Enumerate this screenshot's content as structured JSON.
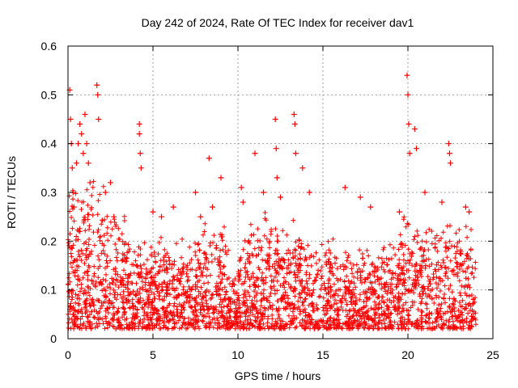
{
  "chart_data": {
    "type": "scatter",
    "title": "Day 242 of 2024, Rate Of TEC Index for receiver dav1",
    "xlabel": "GPS time / hours",
    "ylabel": "ROTI / TECUs",
    "xlim": [
      0,
      25
    ],
    "ylim": [
      0,
      0.6
    ],
    "xticks": [
      0,
      5,
      10,
      15,
      20,
      25
    ],
    "yticks": [
      0,
      0.1,
      0.2,
      0.3,
      0.4,
      0.5,
      0.6
    ],
    "grid": true,
    "legend": "none",
    "marker": "plus",
    "color": "#ff0000",
    "series": [
      {
        "x": [
          0.1,
          0.15,
          0.2,
          0.25,
          0.3,
          0.35,
          0.5,
          0.6,
          0.7,
          0.8,
          0.9,
          1.0,
          1.1,
          1.2,
          1.3,
          1.7,
          1.75,
          1.8,
          2.2,
          2.5,
          2.7,
          4.2,
          4.25,
          4.3,
          4.2,
          5.0,
          5.5,
          6.2,
          7.5,
          7.8,
          8.3,
          8.5,
          9.0,
          10.2,
          10.3,
          11.0,
          11.5,
          12.2,
          12.25,
          12.3,
          12.5,
          13.3,
          13.35,
          13.4,
          13.8,
          14.2,
          16.3,
          17.2,
          17.8,
          19.5,
          19.95,
          20.0,
          20.05,
          20.1,
          20.4,
          20.5,
          21.0,
          22.0,
          22.4,
          22.45,
          22.5,
          23.4,
          23.6
        ],
        "y": [
          0.51,
          0.45,
          0.4,
          0.35,
          0.3,
          0.27,
          0.36,
          0.4,
          0.44,
          0.42,
          0.38,
          0.46,
          0.4,
          0.36,
          0.32,
          0.52,
          0.5,
          0.45,
          0.3,
          0.32,
          0.25,
          0.44,
          0.38,
          0.35,
          0.42,
          0.26,
          0.25,
          0.27,
          0.3,
          0.25,
          0.37,
          0.27,
          0.33,
          0.31,
          0.28,
          0.38,
          0.3,
          0.45,
          0.39,
          0.33,
          0.29,
          0.46,
          0.44,
          0.38,
          0.35,
          0.3,
          0.31,
          0.29,
          0.27,
          0.26,
          0.54,
          0.5,
          0.44,
          0.38,
          0.43,
          0.39,
          0.3,
          0.28,
          0.4,
          0.38,
          0.36,
          0.27,
          0.26
        ]
      }
    ]
  }
}
